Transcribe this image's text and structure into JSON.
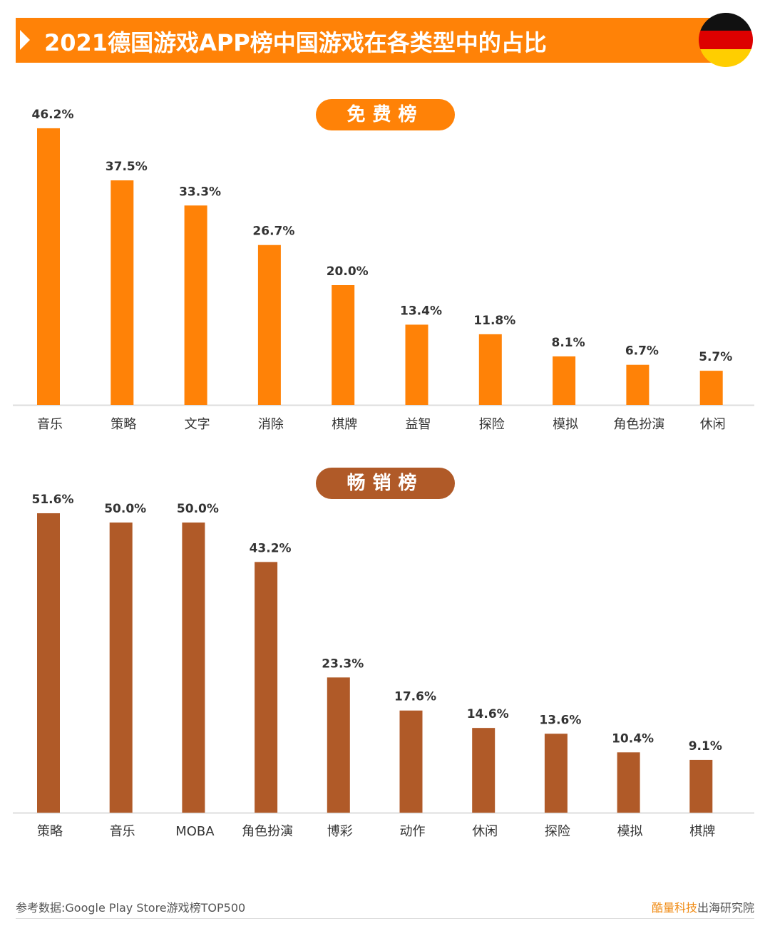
{
  "header": {
    "title": "2021德国游戏APP榜中国游戏在各类型中的占比",
    "flag_colors": [
      "#000000",
      "#DD0000",
      "#FFCE00"
    ]
  },
  "colors": {
    "free": "#FF8207",
    "grossing": "#B05A28",
    "title_bar": "#FF8207"
  },
  "chart_data": [
    {
      "type": "bar",
      "title": "免费榜",
      "categories": [
        "音乐",
        "策略",
        "文字",
        "消除",
        "棋牌",
        "益智",
        "探险",
        "模拟",
        "角色扮演",
        "休闲"
      ],
      "values": [
        46.2,
        37.5,
        33.3,
        26.7,
        20.0,
        13.4,
        11.8,
        8.1,
        6.7,
        5.7
      ],
      "labels": [
        "46.2%",
        "37.5%",
        "33.3%",
        "26.7%",
        "20.0%",
        "13.4%",
        "11.8%",
        "8.1%",
        "6.7%",
        "5.7%"
      ],
      "unit": "%",
      "grid": false
    },
    {
      "type": "bar",
      "title": "畅销榜",
      "categories": [
        "策略",
        "音乐",
        "MOBA",
        "角色扮演",
        "博彩",
        "动作",
        "休闲",
        "探险",
        "模拟",
        "棋牌"
      ],
      "values": [
        51.6,
        50.0,
        50.0,
        43.2,
        23.3,
        17.6,
        14.6,
        13.6,
        10.4,
        9.1
      ],
      "labels": [
        "51.6%",
        "50.0%",
        "50.0%",
        "43.2%",
        "23.3%",
        "17.6%",
        "14.6%",
        "13.6%",
        "10.4%",
        "9.1%"
      ],
      "unit": "%",
      "grid": false
    }
  ],
  "footer": {
    "source": "参考数据:Google Play Store游戏榜TOP500",
    "brand": "酷量科技",
    "brand_suffix": "出海研究院"
  }
}
